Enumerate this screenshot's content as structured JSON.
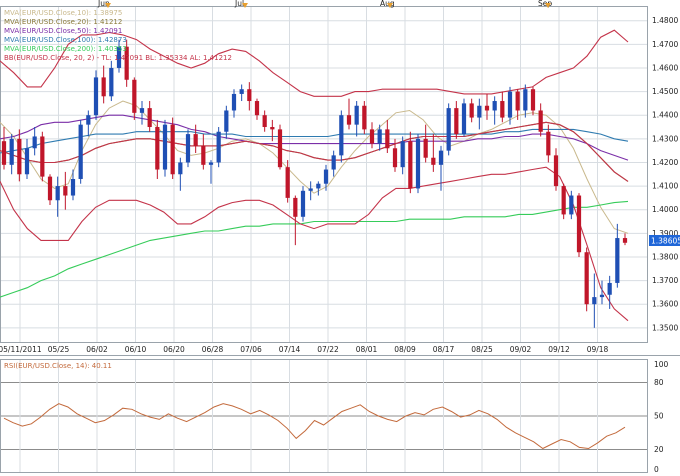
{
  "colors": {
    "up": "#1f4fb4",
    "down": "#c0162a",
    "bb": "#c4344a",
    "mva10": "#c9b98d",
    "mva20": "#8a7a3a",
    "mva50": "#7b2fa8",
    "mva100": "#2f7bb0",
    "mva200": "#36cc5a",
    "rsi": "#c36a3c",
    "grid": "#d8dde2",
    "lastPrice": "#1f66d8"
  },
  "month_markers": [
    "Jun",
    "Jul",
    "Aug",
    "Sep"
  ],
  "legend": [
    {
      "key": "mva10",
      "text": "MVA(EUR/USD.Close,10): 1.38975"
    },
    {
      "key": "mva20",
      "text": "MVA(EUR/USD.Close,20): 1.41212"
    },
    {
      "key": "mva50",
      "text": "MVA(EUR/USD.Close,50): 1.42091"
    },
    {
      "key": "mva100",
      "text": "MVA(EUR/USD.Close,100): 1.42873"
    },
    {
      "key": "mva200",
      "text": "MVA(EUR/USD.Close,200): 1.40353"
    },
    {
      "key": "bb",
      "text": "BB(EUR/USD.Close, 20, 2) - TL: 1.47091  BL: 1.35334  AL: 1.41212"
    }
  ],
  "last_price_label": "1.38605",
  "rsi_legend": "RSI(EUR/USD.Close, 14): 40.11",
  "chart_data": [
    {
      "type": "candlestick",
      "x_tick_labels": [
        "05/11/2011",
        "05/25",
        "06/02",
        "06/10",
        "06/20",
        "06/28",
        "07/06",
        "07/14",
        "07/22",
        "08/01",
        "08/09",
        "08/17",
        "08/25",
        "09/02",
        "09/12",
        "09/18"
      ],
      "y_tick_labels": [
        "1.3500",
        "1.3600",
        "1.3700",
        "1.3800",
        "1.3900",
        "1.4000",
        "1.4100",
        "1.4200",
        "1.4300",
        "1.4400",
        "1.4500",
        "1.4600",
        "1.4700",
        "1.4800"
      ],
      "ylim": [
        1.344,
        1.4858
      ],
      "grid": true,
      "candles": [
        [
          1.429,
          1.435,
          1.417,
          1.419
        ],
        [
          1.419,
          1.432,
          1.415,
          1.43
        ],
        [
          1.43,
          1.434,
          1.412,
          1.415
        ],
        [
          1.415,
          1.43,
          1.413,
          1.426
        ],
        [
          1.426,
          1.435,
          1.423,
          1.431
        ],
        [
          1.431,
          1.433,
          1.412,
          1.414
        ],
        [
          1.414,
          1.415,
          1.402,
          1.404
        ],
        [
          1.404,
          1.414,
          1.397,
          1.41
        ],
        [
          1.41,
          1.416,
          1.4,
          1.406
        ],
        [
          1.406,
          1.417,
          1.404,
          1.413
        ],
        [
          1.413,
          1.438,
          1.411,
          1.436
        ],
        [
          1.436,
          1.442,
          1.431,
          1.44
        ],
        [
          1.44,
          1.459,
          1.438,
          1.456
        ],
        [
          1.456,
          1.461,
          1.445,
          1.448
        ],
        [
          1.448,
          1.463,
          1.446,
          1.46
        ],
        [
          1.46,
          1.472,
          1.458,
          1.469
        ],
        [
          1.469,
          1.472,
          1.452,
          1.455
        ],
        [
          1.455,
          1.456,
          1.438,
          1.441
        ],
        [
          1.441,
          1.446,
          1.436,
          1.443
        ],
        [
          1.443,
          1.446,
          1.433,
          1.435
        ],
        [
          1.435,
          1.438,
          1.413,
          1.417
        ],
        [
          1.417,
          1.438,
          1.414,
          1.436
        ],
        [
          1.436,
          1.439,
          1.413,
          1.415
        ],
        [
          1.415,
          1.422,
          1.408,
          1.42
        ],
        [
          1.42,
          1.434,
          1.418,
          1.432
        ],
        [
          1.432,
          1.436,
          1.424,
          1.427
        ],
        [
          1.427,
          1.432,
          1.417,
          1.419
        ],
        [
          1.419,
          1.421,
          1.411,
          1.42
        ],
        [
          1.42,
          1.435,
          1.418,
          1.433
        ],
        [
          1.433,
          1.444,
          1.43,
          1.442
        ],
        [
          1.442,
          1.451,
          1.439,
          1.449
        ],
        [
          1.449,
          1.453,
          1.446,
          1.451
        ],
        [
          1.451,
          1.454,
          1.442,
          1.446
        ],
        [
          1.446,
          1.447,
          1.438,
          1.44
        ],
        [
          1.44,
          1.442,
          1.433,
          1.435
        ],
        [
          1.435,
          1.438,
          1.429,
          1.434
        ],
        [
          1.434,
          1.436,
          1.417,
          1.418
        ],
        [
          1.418,
          1.421,
          1.403,
          1.405
        ],
        [
          1.405,
          1.406,
          1.385,
          1.397
        ],
        [
          1.397,
          1.41,
          1.395,
          1.408
        ],
        [
          1.408,
          1.412,
          1.404,
          1.409
        ],
        [
          1.409,
          1.412,
          1.406,
          1.411
        ],
        [
          1.411,
          1.419,
          1.408,
          1.417
        ],
        [
          1.417,
          1.425,
          1.414,
          1.423
        ],
        [
          1.423,
          1.442,
          1.42,
          1.44
        ],
        [
          1.44,
          1.447,
          1.434,
          1.436
        ],
        [
          1.436,
          1.446,
          1.431,
          1.444
        ],
        [
          1.444,
          1.446,
          1.432,
          1.434
        ],
        [
          1.434,
          1.437,
          1.426,
          1.428
        ],
        [
          1.428,
          1.436,
          1.425,
          1.434
        ],
        [
          1.434,
          1.438,
          1.424,
          1.426
        ],
        [
          1.426,
          1.43,
          1.416,
          1.418
        ],
        [
          1.418,
          1.431,
          1.415,
          1.429
        ],
        [
          1.429,
          1.433,
          1.407,
          1.409
        ],
        [
          1.409,
          1.432,
          1.407,
          1.43
        ],
        [
          1.43,
          1.436,
          1.42,
          1.422
        ],
        [
          1.422,
          1.432,
          1.416,
          1.419
        ],
        [
          1.419,
          1.427,
          1.408,
          1.425
        ],
        [
          1.425,
          1.445,
          1.423,
          1.443
        ],
        [
          1.443,
          1.446,
          1.43,
          1.432
        ],
        [
          1.432,
          1.447,
          1.431,
          1.445
        ],
        [
          1.445,
          1.447,
          1.437,
          1.439
        ],
        [
          1.439,
          1.447,
          1.434,
          1.444
        ],
        [
          1.444,
          1.449,
          1.438,
          1.442
        ],
        [
          1.442,
          1.448,
          1.436,
          1.446
        ],
        [
          1.446,
          1.45,
          1.437,
          1.439
        ],
        [
          1.439,
          1.452,
          1.436,
          1.45
        ],
        [
          1.45,
          1.451,
          1.438,
          1.442
        ],
        [
          1.442,
          1.453,
          1.439,
          1.451
        ],
        [
          1.451,
          1.452,
          1.44,
          1.442
        ],
        [
          1.442,
          1.445,
          1.431,
          1.433
        ],
        [
          1.433,
          1.436,
          1.42,
          1.423
        ],
        [
          1.423,
          1.426,
          1.408,
          1.41
        ],
        [
          1.41,
          1.411,
          1.396,
          1.398
        ],
        [
          1.398,
          1.408,
          1.396,
          1.406
        ],
        [
          1.406,
          1.407,
          1.38,
          1.382
        ],
        [
          1.382,
          1.384,
          1.357,
          1.36
        ],
        [
          1.36,
          1.373,
          1.35,
          1.363
        ],
        [
          1.363,
          1.37,
          1.36,
          1.364
        ],
        [
          1.364,
          1.372,
          1.358,
          1.369
        ],
        [
          1.369,
          1.394,
          1.367,
          1.388
        ],
        [
          1.388,
          1.39,
          1.385,
          1.386
        ]
      ],
      "series": [
        {
          "name": "MVA(EUR/USD.Close,10)",
          "key": "mva10",
          "values": [
            1.437,
            1.431,
            1.422,
            1.413,
            1.409,
            1.411,
            1.425,
            1.436,
            1.443,
            1.446,
            1.444,
            1.438,
            1.432,
            1.425,
            1.423,
            1.424,
            1.426,
            1.429,
            1.43,
            1.428,
            1.424,
            1.418,
            1.412,
            1.407,
            1.41,
            1.418,
            1.425,
            1.431,
            1.436,
            1.441,
            1.442,
            1.438,
            1.431,
            1.427,
            1.429,
            1.432,
            1.434,
            1.437,
            1.44,
            1.441,
            1.44,
            1.435,
            1.426,
            1.413,
            1.401,
            1.392,
            1.39
          ]
        },
        {
          "name": "MVA(EUR/USD.Close,20)",
          "key": "mva20",
          "values": [
            1.425,
            1.423,
            1.421,
            1.42,
            1.42,
            1.421,
            1.423,
            1.426,
            1.428,
            1.429,
            1.43,
            1.43,
            1.429,
            1.428,
            1.427,
            1.427,
            1.427,
            1.428,
            1.429,
            1.428,
            1.427,
            1.425,
            1.424,
            1.422,
            1.421,
            1.421,
            1.422,
            1.424,
            1.426,
            1.428,
            1.43,
            1.431,
            1.431,
            1.431,
            1.431,
            1.432,
            1.433,
            1.434,
            1.435,
            1.436,
            1.437,
            1.436,
            1.433,
            1.428,
            1.422,
            1.416,
            1.412
          ]
        },
        {
          "name": "MVA(EUR/USD.Close,50)",
          "key": "mva50",
          "values": [
            1.43,
            1.431,
            1.433,
            1.436,
            1.437,
            1.437,
            1.438,
            1.439,
            1.44,
            1.44,
            1.439,
            1.438,
            1.437,
            1.436,
            1.434,
            1.433,
            1.431,
            1.43,
            1.429,
            1.428,
            1.428,
            1.428,
            1.428,
            1.428,
            1.428,
            1.428,
            1.428,
            1.428,
            1.428,
            1.428,
            1.429,
            1.429,
            1.429,
            1.429,
            1.429,
            1.43,
            1.43,
            1.431,
            1.431,
            1.432,
            1.432,
            1.431,
            1.43,
            1.428,
            1.425,
            1.423,
            1.421
          ]
        },
        {
          "name": "MVA(EUR/USD.Close,100)",
          "key": "mva100",
          "values": [
            1.424,
            1.425,
            1.426,
            1.428,
            1.429,
            1.43,
            1.431,
            1.432,
            1.432,
            1.432,
            1.433,
            1.433,
            1.433,
            1.433,
            1.433,
            1.432,
            1.432,
            1.432,
            1.431,
            1.431,
            1.431,
            1.431,
            1.431,
            1.431,
            1.431,
            1.432,
            1.432,
            1.432,
            1.432,
            1.432,
            1.432,
            1.432,
            1.432,
            1.432,
            1.432,
            1.432,
            1.432,
            1.433,
            1.433,
            1.434,
            1.434,
            1.434,
            1.434,
            1.433,
            1.432,
            1.43,
            1.429
          ]
        },
        {
          "name": "MVA(EUR/USD.Close,200)",
          "key": "mva200",
          "values": [
            1.363,
            1.365,
            1.367,
            1.37,
            1.372,
            1.375,
            1.377,
            1.379,
            1.381,
            1.383,
            1.385,
            1.387,
            1.388,
            1.389,
            1.39,
            1.391,
            1.391,
            1.392,
            1.393,
            1.393,
            1.394,
            1.394,
            1.394,
            1.395,
            1.395,
            1.395,
            1.395,
            1.395,
            1.395,
            1.395,
            1.396,
            1.396,
            1.396,
            1.396,
            1.397,
            1.397,
            1.397,
            1.397,
            1.398,
            1.398,
            1.399,
            1.4,
            1.401,
            1.401,
            1.402,
            1.403,
            1.4035
          ]
        },
        {
          "name": "BB upper",
          "key": "bb",
          "values": [
            1.463,
            1.458,
            1.452,
            1.452,
            1.46,
            1.47,
            1.474,
            1.474,
            1.475,
            1.474,
            1.472,
            1.468,
            1.465,
            1.462,
            1.46,
            1.462,
            1.466,
            1.468,
            1.467,
            1.463,
            1.458,
            1.454,
            1.45,
            1.448,
            1.448,
            1.448,
            1.45,
            1.45,
            1.451,
            1.451,
            1.451,
            1.451,
            1.451,
            1.45,
            1.449,
            1.449,
            1.449,
            1.45,
            1.451,
            1.452,
            1.456,
            1.458,
            1.46,
            1.465,
            1.473,
            1.476,
            1.471
          ]
        },
        {
          "name": "BB lower",
          "key": "bb",
          "values": [
            1.412,
            1.4,
            1.392,
            1.387,
            1.387,
            1.387,
            1.395,
            1.401,
            1.404,
            1.404,
            1.404,
            1.402,
            1.399,
            1.394,
            1.394,
            1.397,
            1.401,
            1.403,
            1.404,
            1.404,
            1.402,
            1.398,
            1.394,
            1.392,
            1.394,
            1.394,
            1.394,
            1.398,
            1.405,
            1.409,
            1.409,
            1.41,
            1.411,
            1.412,
            1.413,
            1.414,
            1.415,
            1.415,
            1.416,
            1.417,
            1.418,
            1.414,
            1.402,
            1.385,
            1.367,
            1.358,
            1.353
          ]
        },
        {
          "name": "BB middle",
          "key": "bb",
          "values": [
            1.425,
            1.423,
            1.421,
            1.42,
            1.42,
            1.421,
            1.423,
            1.426,
            1.428,
            1.429,
            1.43,
            1.43,
            1.429,
            1.428,
            1.427,
            1.427,
            1.427,
            1.428,
            1.429,
            1.428,
            1.427,
            1.425,
            1.424,
            1.422,
            1.421,
            1.421,
            1.422,
            1.424,
            1.426,
            1.428,
            1.43,
            1.431,
            1.431,
            1.431,
            1.431,
            1.432,
            1.433,
            1.434,
            1.435,
            1.436,
            1.437,
            1.436,
            1.433,
            1.428,
            1.422,
            1.416,
            1.412
          ]
        }
      ]
    },
    {
      "type": "line",
      "y_tick_labels": [
        "100",
        "80",
        "50",
        "20",
        "0"
      ],
      "ylim": [
        0,
        100
      ],
      "guides": [
        80,
        50,
        20
      ],
      "series": [
        {
          "name": "RSI(EUR/USD.Close, 14)",
          "key": "rsi",
          "values": [
            48,
            44,
            41,
            43,
            49,
            56,
            61,
            58,
            52,
            48,
            44,
            46,
            51,
            57,
            56,
            52,
            49,
            47,
            52,
            48,
            45,
            49,
            53,
            58,
            61,
            59,
            56,
            52,
            55,
            51,
            46,
            39,
            30,
            37,
            46,
            42,
            48,
            54,
            57,
            60,
            54,
            50,
            47,
            45,
            50,
            53,
            51,
            56,
            58,
            54,
            49,
            51,
            55,
            52,
            47,
            40,
            35,
            31,
            27,
            21,
            25,
            29,
            27,
            22,
            21,
            26,
            32,
            35,
            40
          ]
        }
      ]
    }
  ]
}
